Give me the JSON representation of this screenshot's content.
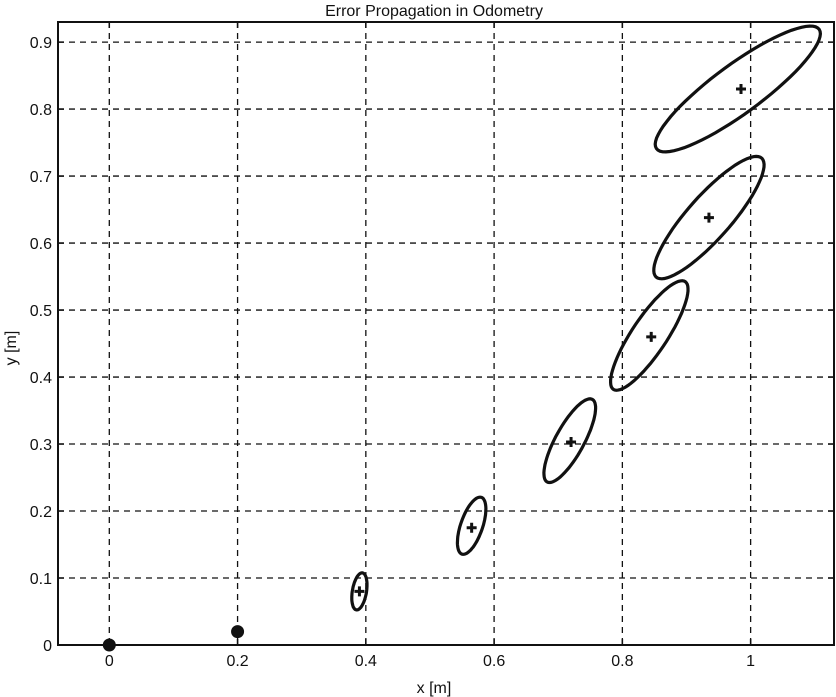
{
  "chart_data": {
    "type": "scatter",
    "title": "Error Propagation in Odometry",
    "xlabel": "x [m]",
    "ylabel": "y [m]",
    "xlim": [
      -0.08,
      1.13
    ],
    "ylim": [
      0,
      0.93
    ],
    "xticks": [
      0,
      0.2,
      0.4,
      0.6,
      0.8,
      1
    ],
    "xtick_labels": [
      "0",
      "0.2",
      "0.4",
      "0.6",
      "0.8",
      "1"
    ],
    "yticks": [
      0,
      0.1,
      0.2,
      0.3,
      0.4,
      0.5,
      0.6,
      0.7,
      0.8,
      0.9
    ],
    "ytick_labels": [
      "0",
      "0.1",
      "0.2",
      "0.3",
      "0.4",
      "0.5",
      "0.6",
      "0.7",
      "0.8",
      "0.9"
    ],
    "grid": true,
    "grid_style": "dashed",
    "colors": {
      "line": "#111111",
      "background": "#ffffff"
    },
    "series": [
      {
        "marker": "circle",
        "x": [
          0,
          0.2
        ],
        "y": [
          0,
          0.02
        ]
      },
      {
        "marker": "plus",
        "x": [
          0.39,
          0.565,
          0.72,
          0.845,
          0.935,
          0.985
        ],
        "y": [
          0.08,
          0.175,
          0.303,
          0.46,
          0.638,
          0.83
        ]
      }
    ],
    "ellipses": [
      {
        "cx": 0.39,
        "cy": 0.08,
        "semi_major": 0.028,
        "semi_minor": 0.011,
        "angle_deg": 80
      },
      {
        "cx": 0.565,
        "cy": 0.178,
        "semi_major": 0.045,
        "semi_minor": 0.017,
        "angle_deg": 70
      },
      {
        "cx": 0.718,
        "cy": 0.305,
        "semi_major": 0.071,
        "semi_minor": 0.022,
        "angle_deg": 60
      },
      {
        "cx": 0.842,
        "cy": 0.462,
        "semi_major": 0.098,
        "semi_minor": 0.027,
        "angle_deg": 55
      },
      {
        "cx": 0.935,
        "cy": 0.638,
        "semi_major": 0.121,
        "semi_minor": 0.033,
        "angle_deg": 47
      },
      {
        "cx": 0.98,
        "cy": 0.83,
        "semi_major": 0.155,
        "semi_minor": 0.037,
        "angle_deg": 35
      }
    ]
  }
}
